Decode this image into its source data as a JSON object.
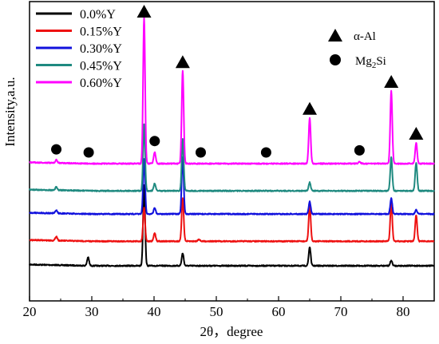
{
  "chart_data": {
    "type": "line",
    "title": "",
    "xlabel": "2θ，degree",
    "ylabel": "Intensity,a.u.",
    "xlim": [
      20,
      85
    ],
    "x_ticks": [
      "20",
      "30",
      "40",
      "50",
      "60",
      "70",
      "80"
    ],
    "y_ticks_labeled": false,
    "grid": false,
    "legend_position": "top-left",
    "series": [
      {
        "name": "0.0%Y",
        "color": "#000000",
        "baseline": 0.0,
        "peaks": [
          [
            29.4,
            0.08
          ],
          [
            38.4,
            0.78
          ],
          [
            44.6,
            0.12
          ],
          [
            65.0,
            0.18
          ],
          [
            78.1,
            0.05
          ]
        ]
      },
      {
        "name": "0.15%Y",
        "color": "#ee1111",
        "baseline": 0.18,
        "peaks": [
          [
            24.3,
            0.04
          ],
          [
            38.4,
            0.32
          ],
          [
            40.1,
            0.08
          ],
          [
            44.6,
            0.42
          ],
          [
            47.2,
            0.02
          ],
          [
            65.0,
            0.35
          ],
          [
            78.1,
            0.37
          ],
          [
            82.1,
            0.25
          ]
        ]
      },
      {
        "name": "0.30%Y",
        "color": "#1111dd",
        "baseline": 0.38,
        "peaks": [
          [
            24.3,
            0.03
          ],
          [
            38.4,
            0.53
          ],
          [
            40.1,
            0.06
          ],
          [
            44.6,
            0.55
          ],
          [
            65.0,
            0.12
          ],
          [
            78.1,
            0.15
          ],
          [
            82.1,
            0.04
          ]
        ]
      },
      {
        "name": "0.45%Y",
        "color": "#1f8a80",
        "baseline": 0.55,
        "peaks": [
          [
            24.3,
            0.03
          ],
          [
            38.4,
            0.64
          ],
          [
            40.1,
            0.07
          ],
          [
            44.6,
            0.5
          ],
          [
            65.0,
            0.08
          ],
          [
            78.1,
            0.32
          ],
          [
            82.1,
            0.27
          ]
        ]
      },
      {
        "name": "0.60%Y",
        "color": "#ff00ff",
        "baseline": 0.75,
        "peaks": [
          [
            24.3,
            0.03
          ],
          [
            38.4,
            1.4
          ],
          [
            40.1,
            0.11
          ],
          [
            44.6,
            0.89
          ],
          [
            65.0,
            0.44
          ],
          [
            73.0,
            0.02
          ],
          [
            78.1,
            0.7
          ],
          [
            82.1,
            0.2
          ]
        ]
      }
    ],
    "annotations": {
      "alpha_al_peaks": [
        38.4,
        44.6,
        65.0,
        78.1,
        82.1
      ],
      "mg2si_peaks": [
        24.3,
        29.5,
        40.1,
        47.5,
        58.0,
        73.0
      ],
      "legend": [
        {
          "marker": "triangle",
          "label": "α-Al"
        },
        {
          "marker": "circle",
          "label_main": "Mg",
          "label_sub": "2",
          "label_tail": "Si"
        }
      ]
    }
  }
}
